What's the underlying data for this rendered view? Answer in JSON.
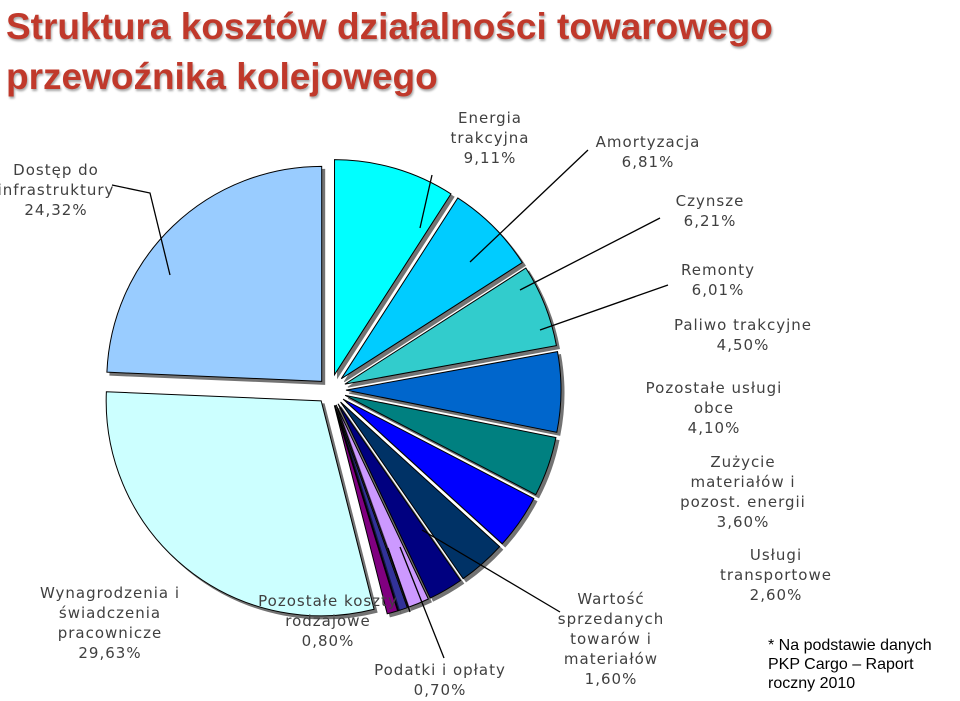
{
  "title_lines": [
    "Struktura kosztów działalności towarowego",
    "przewoźnika kolejowego"
  ],
  "colors": {
    "title": "#c0392b",
    "label": "#404040",
    "leader": "#000000"
  },
  "footnote_lines": [
    "* Na podstawie danych",
    "PKP Cargo – Raport",
    "roczny 2010"
  ],
  "chart_data": {
    "type": "pie",
    "title": "Struktura kosztów działalności towarowego przewoźnika kolejowego",
    "slices": [
      {
        "name": "Energia trakcyjna",
        "value": 9.11,
        "label_lines": [
          "Energia",
          "trakcyjna",
          "9,11%"
        ],
        "color": "#00ffff"
      },
      {
        "name": "Amortyzacja",
        "value": 6.81,
        "label_lines": [
          "Amortyzacja",
          "6,81%"
        ],
        "color": "#00ccff"
      },
      {
        "name": "Czynsze",
        "value": 6.21,
        "label_lines": [
          "Czynsze",
          "6,21%"
        ],
        "color": "#33cccc"
      },
      {
        "name": "Remonty",
        "value": 6.01,
        "label_lines": [
          "Remonty",
          "6,01%"
        ],
        "color": "#0066cc"
      },
      {
        "name": "Paliwo trakcyjne",
        "value": 4.5,
        "label_lines": [
          "Paliwo trakcyjne",
          "4,50%"
        ],
        "color": "#008080"
      },
      {
        "name": "Pozostałe usługi obce",
        "value": 4.1,
        "label_lines": [
          "Pozostałe usługi",
          "obce",
          "4,10%"
        ],
        "color": "#0000ff"
      },
      {
        "name": "Zużycie materiałów i pozost. energii",
        "value": 3.6,
        "label_lines": [
          "Zużycie",
          "materiałów i",
          "pozost. energii",
          "3,60%"
        ],
        "color": "#003366"
      },
      {
        "name": "Usługi transportowe",
        "value": 2.6,
        "label_lines": [
          "Usługi",
          "transportowe",
          "2,60%"
        ],
        "color": "#000080"
      },
      {
        "name": "Wartość sprzedanych towarów i materiałów",
        "value": 1.6,
        "label_lines": [
          "Wartość",
          "sprzedanych",
          "towarów i",
          "materiałów",
          "1,60%"
        ],
        "color": "#cc99ff"
      },
      {
        "name": "Podatki i opłaty",
        "value": 0.7,
        "label_lines": [
          "Podatki i opłaty",
          "0,70%"
        ],
        "color": "#333399"
      },
      {
        "name": "Pozostałe koszty rodzajowe",
        "value": 0.8,
        "label_lines": [
          "Pozostałe koszty",
          "rodzajowe",
          "0,80%"
        ],
        "color": "#800080"
      },
      {
        "name": "Wynagrodzenia i świadczenia pracownicze",
        "value": 29.63,
        "label_lines": [
          "Wynagrodzenia i",
          "świadczenia",
          "pracownicze",
          "29,63%"
        ],
        "color": "#ccffff"
      },
      {
        "name": "Dostęp do infrastruktury",
        "value": 24.32,
        "label_lines": [
          "Dostęp do",
          "infrastruktury",
          "24,32%"
        ],
        "color": "#99ccff"
      }
    ]
  }
}
